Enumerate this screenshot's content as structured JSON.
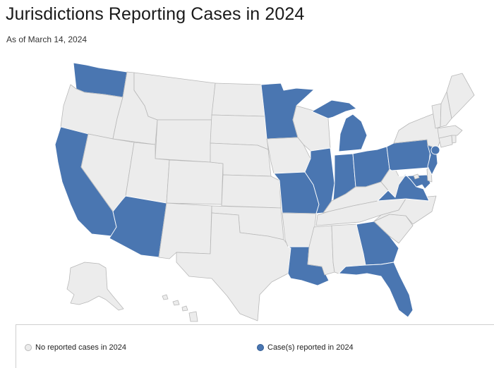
{
  "title": "Jurisdictions Reporting Cases in 2024",
  "subtitle": "As of March 14, 2024",
  "colors": {
    "no_cases": "#ececec",
    "cases": "#4a76b1",
    "border": "#b8b8b8"
  },
  "legend": {
    "no_cases_label": "No reported cases in 2024",
    "cases_label": "Case(s) reported in 2024"
  },
  "states": [
    {
      "code": "WA",
      "name": "Washington",
      "reported": true
    },
    {
      "code": "OR",
      "name": "Oregon",
      "reported": false
    },
    {
      "code": "CA",
      "name": "California",
      "reported": true
    },
    {
      "code": "ID",
      "name": "Idaho",
      "reported": false
    },
    {
      "code": "NV",
      "name": "Nevada",
      "reported": false
    },
    {
      "code": "MT",
      "name": "Montana",
      "reported": false
    },
    {
      "code": "WY",
      "name": "Wyoming",
      "reported": false
    },
    {
      "code": "UT",
      "name": "Utah",
      "reported": false
    },
    {
      "code": "AZ",
      "name": "Arizona",
      "reported": true
    },
    {
      "code": "CO",
      "name": "Colorado",
      "reported": false
    },
    {
      "code": "NM",
      "name": "New Mexico",
      "reported": false
    },
    {
      "code": "ND",
      "name": "North Dakota",
      "reported": false
    },
    {
      "code": "SD",
      "name": "South Dakota",
      "reported": false
    },
    {
      "code": "NE",
      "name": "Nebraska",
      "reported": false
    },
    {
      "code": "KS",
      "name": "Kansas",
      "reported": false
    },
    {
      "code": "OK",
      "name": "Oklahoma",
      "reported": false
    },
    {
      "code": "TX",
      "name": "Texas",
      "reported": false
    },
    {
      "code": "MN",
      "name": "Minnesota",
      "reported": true
    },
    {
      "code": "IA",
      "name": "Iowa",
      "reported": false
    },
    {
      "code": "MO",
      "name": "Missouri",
      "reported": true
    },
    {
      "code": "AR",
      "name": "Arkansas",
      "reported": false
    },
    {
      "code": "LA",
      "name": "Louisiana",
      "reported": true
    },
    {
      "code": "WI",
      "name": "Wisconsin",
      "reported": false
    },
    {
      "code": "IL",
      "name": "Illinois",
      "reported": true
    },
    {
      "code": "MI",
      "name": "Michigan",
      "reported": true
    },
    {
      "code": "IN",
      "name": "Indiana",
      "reported": true
    },
    {
      "code": "OH",
      "name": "Ohio",
      "reported": true
    },
    {
      "code": "KY",
      "name": "Kentucky",
      "reported": false
    },
    {
      "code": "TN",
      "name": "Tennessee",
      "reported": false
    },
    {
      "code": "MS",
      "name": "Mississippi",
      "reported": false
    },
    {
      "code": "AL",
      "name": "Alabama",
      "reported": false
    },
    {
      "code": "GA",
      "name": "Georgia",
      "reported": true
    },
    {
      "code": "FL",
      "name": "Florida",
      "reported": true
    },
    {
      "code": "SC",
      "name": "South Carolina",
      "reported": false
    },
    {
      "code": "NC",
      "name": "North Carolina",
      "reported": false
    },
    {
      "code": "VA",
      "name": "Virginia",
      "reported": true
    },
    {
      "code": "WV",
      "name": "West Virginia",
      "reported": false
    },
    {
      "code": "MD",
      "name": "Maryland",
      "reported": true
    },
    {
      "code": "DE",
      "name": "Delaware",
      "reported": false
    },
    {
      "code": "DC",
      "name": "District of Columbia",
      "reported": false
    },
    {
      "code": "PA",
      "name": "Pennsylvania",
      "reported": true
    },
    {
      "code": "NJ",
      "name": "New Jersey",
      "reported": true
    },
    {
      "code": "NY",
      "name": "New York",
      "reported": false
    },
    {
      "code": "NYC",
      "name": "New York City",
      "reported": true
    },
    {
      "code": "CT",
      "name": "Connecticut",
      "reported": false
    },
    {
      "code": "RI",
      "name": "Rhode Island",
      "reported": false
    },
    {
      "code": "MA",
      "name": "Massachusetts",
      "reported": false
    },
    {
      "code": "VT",
      "name": "Vermont",
      "reported": false
    },
    {
      "code": "NH",
      "name": "New Hampshire",
      "reported": false
    },
    {
      "code": "ME",
      "name": "Maine",
      "reported": false
    },
    {
      "code": "AK",
      "name": "Alaska",
      "reported": false
    },
    {
      "code": "HI",
      "name": "Hawaii",
      "reported": false
    }
  ]
}
